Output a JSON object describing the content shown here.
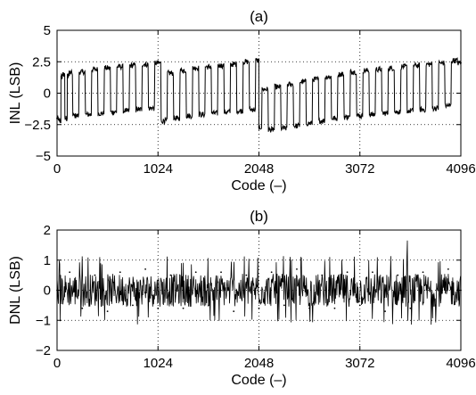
{
  "chart_data": [
    {
      "type": "line",
      "title": "(a)",
      "xlabel": "Code (–)",
      "ylabel": "INL (LSB)",
      "xlim": [
        0,
        4096
      ],
      "ylim": [
        -5,
        5
      ],
      "xticks": [
        0,
        1024,
        2048,
        3072,
        4096
      ],
      "xtick_labels": [
        "0",
        "1024",
        "2048",
        "3072",
        "4096"
      ],
      "yticks": [
        -5,
        -2.5,
        0,
        2.5,
        5
      ],
      "ytick_labels": [
        "−5",
        "−2.5",
        "0",
        "2.5",
        "5"
      ],
      "grid": "dotted",
      "line_color": "#000000",
      "series": [
        {
          "x": [
            0,
            32,
            48,
            64,
            96,
            112,
            128,
            192,
            256,
            320,
            384,
            448,
            512,
            576,
            640,
            704,
            768,
            832,
            896,
            960,
            1024,
            1088,
            1152,
            1216,
            1280,
            1344,
            1408,
            1472,
            1536,
            1600,
            1664,
            1728,
            1792,
            1856,
            1920,
            1984,
            2047,
            2048,
            2112,
            2176,
            2240,
            2304,
            2368,
            2432,
            2496,
            2560,
            2624,
            2688,
            2752,
            2816,
            2880,
            2944,
            3008,
            3072,
            3136,
            3200,
            3264,
            3328,
            3392,
            3456,
            3520,
            3584,
            3648,
            3712,
            3776,
            3840,
            3904,
            3968,
            4032,
            4096
          ],
          "y": [
            -2.0,
            -2.2,
            1.3,
            1.5,
            -2.0,
            1.4,
            1.6,
            -1.8,
            1.7,
            -1.7,
            1.9,
            -1.6,
            2.0,
            -1.5,
            2.1,
            -1.4,
            2.2,
            -1.3,
            2.3,
            -1.2,
            2.4,
            -2.2,
            1.6,
            -2.0,
            1.8,
            -1.8,
            2.0,
            -1.7,
            2.1,
            -1.6,
            2.2,
            -1.5,
            2.3,
            -1.4,
            2.5,
            -1.3,
            2.6,
            -2.7,
            0.3,
            -2.9,
            0.5,
            -2.8,
            0.7,
            -2.6,
            0.9,
            -2.4,
            1.1,
            -2.2,
            1.3,
            -2.0,
            1.5,
            -1.9,
            1.7,
            -1.8,
            1.8,
            -1.7,
            1.9,
            -1.6,
            2.0,
            -1.5,
            2.1,
            -1.4,
            2.2,
            -1.3,
            2.3,
            -1.2,
            2.4,
            -1.0,
            2.6,
            2.4
          ]
        }
      ]
    },
    {
      "type": "line",
      "title": "(b)",
      "xlabel": "Code (–)",
      "ylabel": "DNL (LSB)",
      "xlim": [
        0,
        4096
      ],
      "ylim": [
        -2,
        2
      ],
      "xticks": [
        0,
        1024,
        2048,
        3072,
        4096
      ],
      "xtick_labels": [
        "0",
        "1024",
        "2048",
        "3072",
        "4096"
      ],
      "yticks": [
        -2,
        -1,
        0,
        1,
        2
      ],
      "ytick_labels": [
        "−2",
        "−1",
        "0",
        "1",
        "2"
      ],
      "grid": "dotted",
      "line_color": "#000000",
      "series": [
        {
          "x": [
            0,
            128,
            256,
            384,
            512,
            640,
            768,
            896,
            1024,
            1152,
            1280,
            1408,
            1536,
            1664,
            1792,
            1920,
            2048,
            2176,
            2304,
            2432,
            2560,
            2688,
            2816,
            2944,
            3072,
            3200,
            3328,
            3456,
            3584,
            3712,
            3840,
            3968,
            4096
          ],
          "y": [
            0.0,
            0.6,
            -0.6,
            0.5,
            -0.7,
            0.6,
            -0.5,
            0.7,
            -0.6,
            0.5,
            -0.6,
            0.6,
            -0.5,
            0.6,
            -0.7,
            0.5,
            -0.6,
            0.6,
            -0.5,
            0.7,
            -0.6,
            0.5,
            -0.6,
            0.6,
            -0.5,
            0.6,
            -0.7,
            0.5,
            -0.6,
            0.6,
            -0.5,
            0.7,
            0.0
          ]
        }
      ]
    }
  ]
}
